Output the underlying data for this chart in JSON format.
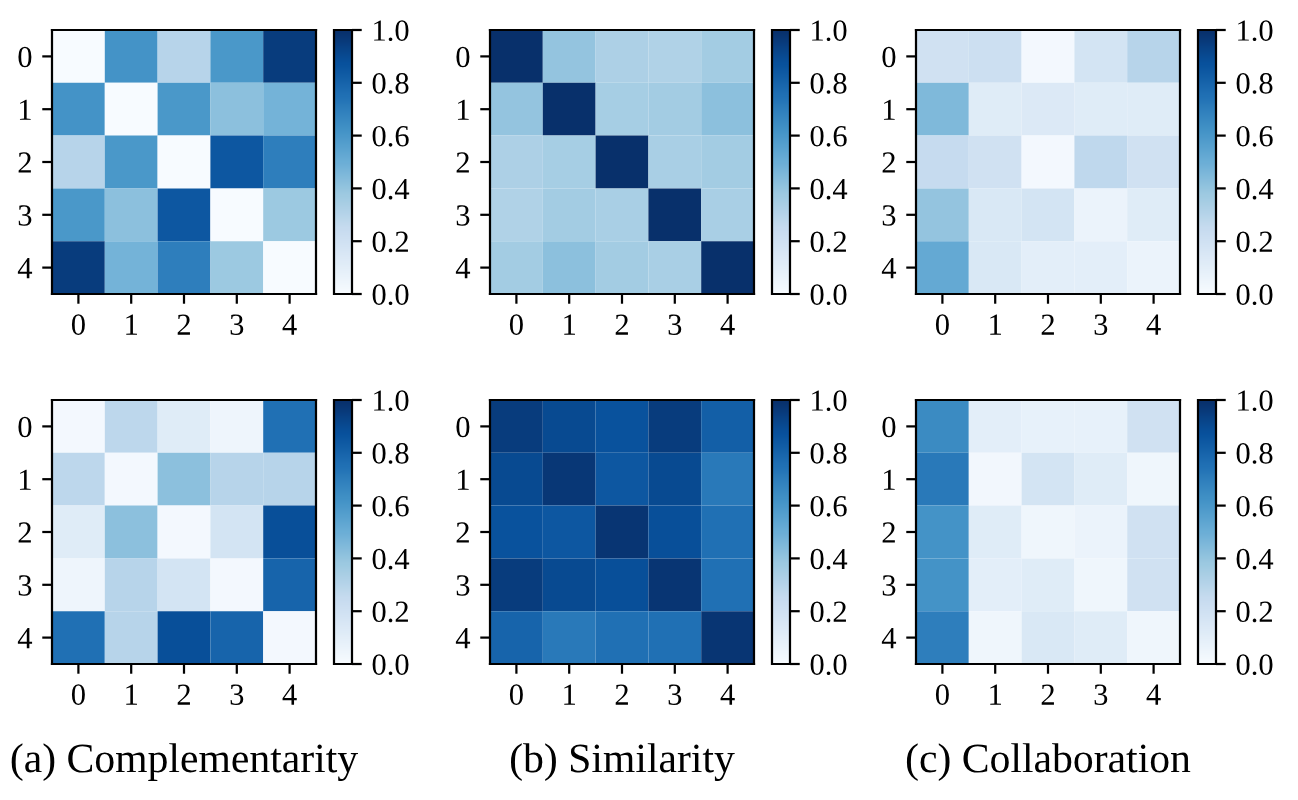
{
  "chart_data": [
    {
      "type": "heatmap",
      "categories": [
        "0",
        "1",
        "2",
        "3",
        "4"
      ],
      "y_categories": [
        "0",
        "1",
        "2",
        "3",
        "4"
      ],
      "cells": [
        [
          0,
          0.62,
          0.3,
          0.6,
          0.95
        ],
        [
          0.62,
          0,
          0.6,
          0.42,
          0.48
        ],
        [
          0.3,
          0.6,
          0,
          0.85,
          0.7
        ],
        [
          0.6,
          0.42,
          0.85,
          0,
          0.38
        ],
        [
          0.95,
          0.48,
          0.7,
          0.38,
          0
        ]
      ],
      "clim": [
        0,
        1
      ],
      "cticks": [
        {
          "value": 0,
          "label": "0.0"
        },
        {
          "value": 0.2,
          "label": "0.2"
        },
        {
          "value": 0.4,
          "label": "0.4"
        },
        {
          "value": 0.6,
          "label": "0.6"
        },
        {
          "value": 0.8,
          "label": "0.8"
        },
        {
          "value": 1,
          "label": "1.0"
        }
      ]
    },
    {
      "type": "heatmap",
      "categories": [
        "0",
        "1",
        "2",
        "3",
        "4"
      ],
      "y_categories": [
        "0",
        "1",
        "2",
        "3",
        "4"
      ],
      "cells": [
        [
          1,
          0.4,
          0.33,
          0.32,
          0.36
        ],
        [
          0.4,
          1,
          0.35,
          0.36,
          0.42
        ],
        [
          0.33,
          0.35,
          1,
          0.34,
          0.36
        ],
        [
          0.32,
          0.36,
          0.34,
          1,
          0.34
        ],
        [
          0.36,
          0.42,
          0.36,
          0.34,
          1
        ]
      ],
      "clim": [
        0,
        1
      ],
      "cticks": [
        {
          "value": 0,
          "label": "0.0"
        },
        {
          "value": 0.2,
          "label": "0.2"
        },
        {
          "value": 0.4,
          "label": "0.4"
        },
        {
          "value": 0.6,
          "label": "0.6"
        },
        {
          "value": 0.8,
          "label": "0.8"
        },
        {
          "value": 1,
          "label": "1.0"
        }
      ]
    },
    {
      "type": "heatmap",
      "categories": [
        "0",
        "1",
        "2",
        "3",
        "4"
      ],
      "y_categories": [
        "0",
        "1",
        "2",
        "3",
        "4"
      ],
      "cells": [
        [
          0.2,
          0.22,
          0.02,
          0.18,
          0.3
        ],
        [
          0.45,
          0.12,
          0.14,
          0.12,
          0.12
        ],
        [
          0.25,
          0.2,
          0.02,
          0.27,
          0.2
        ],
        [
          0.4,
          0.15,
          0.18,
          0.06,
          0.12
        ],
        [
          0.52,
          0.15,
          0.1,
          0.1,
          0.06
        ]
      ],
      "clim": [
        0,
        1
      ],
      "cticks": [
        {
          "value": 0,
          "label": "0.0"
        },
        {
          "value": 0.2,
          "label": "0.2"
        },
        {
          "value": 0.4,
          "label": "0.4"
        },
        {
          "value": 0.6,
          "label": "0.6"
        },
        {
          "value": 0.8,
          "label": "0.8"
        },
        {
          "value": 1,
          "label": "1.0"
        }
      ]
    },
    {
      "type": "heatmap",
      "categories": [
        "0",
        "1",
        "2",
        "3",
        "4"
      ],
      "y_categories": [
        "0",
        "1",
        "2",
        "3",
        "4"
      ],
      "cells": [
        [
          0.02,
          0.28,
          0.12,
          0.05,
          0.75
        ],
        [
          0.28,
          0.02,
          0.42,
          0.3,
          0.3
        ],
        [
          0.12,
          0.42,
          0.02,
          0.18,
          0.88
        ],
        [
          0.05,
          0.3,
          0.18,
          0.02,
          0.8
        ],
        [
          0.75,
          0.3,
          0.88,
          0.8,
          0.02
        ]
      ],
      "clim": [
        0,
        1
      ],
      "cticks": [
        {
          "value": 0,
          "label": "0.0"
        },
        {
          "value": 0.2,
          "label": "0.2"
        },
        {
          "value": 0.4,
          "label": "0.4"
        },
        {
          "value": 0.6,
          "label": "0.6"
        },
        {
          "value": 0.8,
          "label": "0.8"
        },
        {
          "value": 1,
          "label": "1.0"
        }
      ],
      "annotations": [
        "(a) Complementarity"
      ]
    },
    {
      "type": "heatmap",
      "categories": [
        "0",
        "1",
        "2",
        "3",
        "4"
      ],
      "y_categories": [
        "0",
        "1",
        "2",
        "3",
        "4"
      ],
      "cells": [
        [
          0.95,
          0.9,
          0.87,
          0.95,
          0.82
        ],
        [
          0.9,
          0.97,
          0.85,
          0.9,
          0.72
        ],
        [
          0.87,
          0.85,
          0.98,
          0.88,
          0.75
        ],
        [
          0.95,
          0.9,
          0.88,
          0.98,
          0.75
        ],
        [
          0.8,
          0.72,
          0.75,
          0.75,
          0.98
        ]
      ],
      "clim": [
        0,
        1
      ],
      "cticks": [
        {
          "value": 0,
          "label": "0.0"
        },
        {
          "value": 0.2,
          "label": "0.2"
        },
        {
          "value": 0.4,
          "label": "0.4"
        },
        {
          "value": 0.6,
          "label": "0.6"
        },
        {
          "value": 0.8,
          "label": "0.8"
        },
        {
          "value": 1,
          "label": "1.0"
        }
      ],
      "annotations": [
        "(b) Similarity"
      ]
    },
    {
      "type": "heatmap",
      "categories": [
        "0",
        "1",
        "2",
        "3",
        "4"
      ],
      "y_categories": [
        "0",
        "1",
        "2",
        "3",
        "4"
      ],
      "cells": [
        [
          0.65,
          0.1,
          0.08,
          0.08,
          0.2
        ],
        [
          0.72,
          0.03,
          0.18,
          0.12,
          0.04
        ],
        [
          0.62,
          0.12,
          0.04,
          0.06,
          0.2
        ],
        [
          0.62,
          0.1,
          0.12,
          0.04,
          0.2
        ],
        [
          0.7,
          0.04,
          0.15,
          0.12,
          0.04
        ]
      ],
      "clim": [
        0,
        1
      ],
      "cticks": [
        {
          "value": 0,
          "label": "0.0"
        },
        {
          "value": 0.2,
          "label": "0.2"
        },
        {
          "value": 0.4,
          "label": "0.4"
        },
        {
          "value": 0.6,
          "label": "0.6"
        },
        {
          "value": 0.8,
          "label": "0.8"
        },
        {
          "value": 1,
          "label": "1.0"
        }
      ],
      "annotations": [
        "(c) Collaboration"
      ]
    }
  ]
}
